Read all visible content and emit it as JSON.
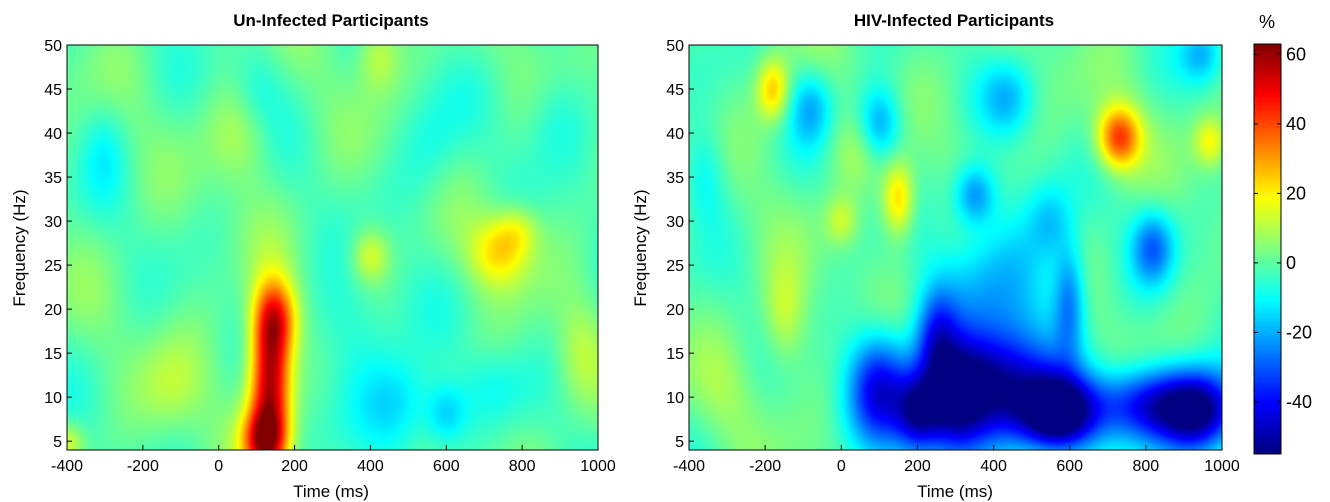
{
  "chart_data": [
    {
      "type": "heatmap",
      "title": "Un-Infected Participants",
      "xlabel": "Time (ms)",
      "ylabel": "Frequency (Hz)",
      "xlim": [
        -400,
        1000
      ],
      "ylim": [
        4,
        50
      ],
      "xticks": [
        -400,
        -200,
        0,
        200,
        400,
        600,
        800,
        1000
      ],
      "yticks": [
        5,
        10,
        15,
        20,
        25,
        30,
        35,
        40,
        45,
        50
      ],
      "grid": false,
      "features": [
        {
          "t": 135,
          "f": 12,
          "value": 60,
          "wt": 38,
          "wf": 6.0
        },
        {
          "t": 150,
          "f": 19,
          "value": 32,
          "wt": 40,
          "wf": 3.0
        },
        {
          "t": 120,
          "f": 5,
          "value": 42,
          "wt": 40,
          "wf": 2.5
        },
        {
          "t": 740,
          "f": 26.5,
          "value": 22,
          "wt": 55,
          "wf": 2.8
        },
        {
          "t": 790,
          "f": 29,
          "value": 12,
          "wt": 40,
          "wf": 2.0
        },
        {
          "t": 400,
          "f": 26,
          "value": 16,
          "wt": 35,
          "wf": 2.2
        },
        {
          "t": 420,
          "f": 49,
          "value": 14,
          "wt": 40,
          "wf": 3.0
        },
        {
          "t": 60,
          "f": 40,
          "value": 9,
          "wt": 60,
          "wf": 4.0
        },
        {
          "t": -400,
          "f": 5,
          "value": 14,
          "wt": 30,
          "wf": 1.5
        },
        {
          "t": -120,
          "f": 11,
          "value": 9,
          "wt": 60,
          "wf": 4.0
        },
        {
          "t": 950,
          "f": 15,
          "value": 8,
          "wt": 40,
          "wf": 4.0
        },
        {
          "t": 480,
          "f": 9,
          "value": -17,
          "wt": 70,
          "wf": 4.0
        },
        {
          "t": 600,
          "f": 8,
          "value": -15,
          "wt": 40,
          "wf": 2.5
        },
        {
          "t": 350,
          "f": 18,
          "value": -9,
          "wt": 90,
          "wf": 5.0
        },
        {
          "t": 720,
          "f": 11,
          "value": -7,
          "wt": 60,
          "wf": 3.0
        },
        {
          "t": 560,
          "f": 38,
          "value": -8,
          "wt": 60,
          "wf": 5.0
        },
        {
          "t": 100,
          "f": 45,
          "value": -9,
          "wt": 50,
          "wf": 3.5
        },
        {
          "t": -300,
          "f": 38,
          "value": -7,
          "wt": 40,
          "wf": 4.0
        },
        {
          "t": 880,
          "f": 42,
          "value": -8,
          "wt": 60,
          "wf": 4.0
        }
      ]
    },
    {
      "type": "heatmap",
      "title": "HIV-Infected Participants",
      "xlabel": "Time (ms)",
      "ylabel": "Frequency (Hz)",
      "xlim": [
        -400,
        1000
      ],
      "ylim": [
        4,
        50
      ],
      "xticks": [
        -400,
        -200,
        0,
        200,
        400,
        600,
        800,
        1000
      ],
      "yticks": [
        5,
        10,
        15,
        20,
        25,
        30,
        35,
        40,
        45,
        50
      ],
      "grid": false,
      "features": [
        {
          "t": 400,
          "f": 11,
          "value": -52,
          "wt": 110,
          "wf": 4.5
        },
        {
          "t": 570,
          "f": 8,
          "value": -55,
          "wt": 70,
          "wf": 3.0
        },
        {
          "t": 290,
          "f": 9,
          "value": -38,
          "wt": 60,
          "wf": 4.5
        },
        {
          "t": 100,
          "f": 11,
          "value": -40,
          "wt": 60,
          "wf": 4.5
        },
        {
          "t": 200,
          "f": 8,
          "value": -33,
          "wt": 40,
          "wf": 3.0
        },
        {
          "t": 820,
          "f": 9,
          "value": -44,
          "wt": 120,
          "wf": 3.0
        },
        {
          "t": 950,
          "f": 8,
          "value": -40,
          "wt": 70,
          "wf": 3.5
        },
        {
          "t": 250,
          "f": 17,
          "value": -27,
          "wt": 40,
          "wf": 4.0
        },
        {
          "t": 600,
          "f": 21,
          "value": -25,
          "wt": 30,
          "wf": 4.5
        },
        {
          "t": 430,
          "f": 23,
          "value": -18,
          "wt": 110,
          "wf": 6.0
        },
        {
          "t": 350,
          "f": 33,
          "value": -25,
          "wt": 40,
          "wf": 2.5
        },
        {
          "t": 820,
          "f": 27,
          "value": -26,
          "wt": 40,
          "wf": 3.0
        },
        {
          "t": 100,
          "f": 41,
          "value": -23,
          "wt": 40,
          "wf": 3.0
        },
        {
          "t": -80,
          "f": 43,
          "value": -17,
          "wt": 40,
          "wf": 3.0
        },
        {
          "t": 950,
          "f": 49,
          "value": -17,
          "wt": 40,
          "wf": 2.5
        },
        {
          "t": -360,
          "f": 35,
          "value": -12,
          "wt": 40,
          "wf": 4.0
        },
        {
          "t": 440,
          "f": 44,
          "value": -15,
          "wt": 50,
          "wf": 3.0
        },
        {
          "t": 550,
          "f": 30,
          "value": -12,
          "wt": 40,
          "wf": 3.0
        },
        {
          "t": 730,
          "f": 39.5,
          "value": 42,
          "wt": 40,
          "wf": 2.5
        },
        {
          "t": -180,
          "f": 45,
          "value": 26,
          "wt": 30,
          "wf": 2.5
        },
        {
          "t": 150,
          "f": 32.5,
          "value": 27,
          "wt": 30,
          "wf": 3.0
        },
        {
          "t": 970,
          "f": 39,
          "value": 18,
          "wt": 30,
          "wf": 2.0
        },
        {
          "t": 0,
          "f": 30,
          "value": 13,
          "wt": 30,
          "wf": 2.0
        },
        {
          "t": -150,
          "f": 19,
          "value": 14,
          "wt": 40,
          "wf": 4.0
        },
        {
          "t": 40,
          "f": 38,
          "value": 8,
          "wt": 50,
          "wf": 3.0
        },
        {
          "t": -300,
          "f": 10,
          "value": 5,
          "wt": 60,
          "wf": 4.0
        }
      ]
    }
  ],
  "colorbar": {
    "unit": "%",
    "range": [
      -55,
      63
    ],
    "ticks": [
      60,
      40,
      20,
      0,
      -20,
      -40
    ]
  }
}
